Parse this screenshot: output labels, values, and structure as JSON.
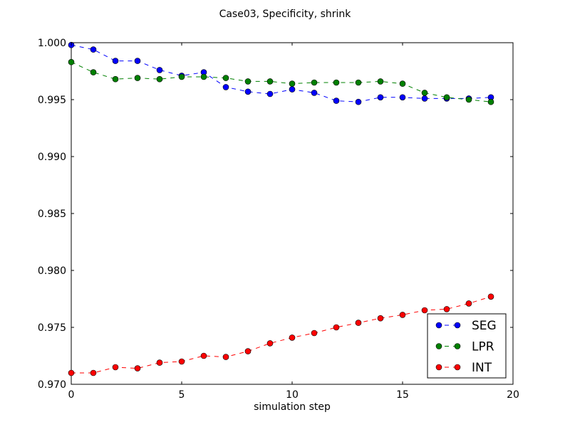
{
  "chart_data": {
    "type": "line",
    "title": "Case03, Specificity, shrink",
    "xlabel": "simulation step",
    "ylabel": "",
    "xlim": [
      0,
      20
    ],
    "ylim": [
      0.97,
      1.0
    ],
    "xticks": [
      "0",
      "5",
      "10",
      "15",
      "20"
    ],
    "yticks": [
      "0.970",
      "0.975",
      "0.980",
      "0.985",
      "0.990",
      "0.995",
      "1.000"
    ],
    "legend_position": "lower-right",
    "grid": false,
    "x": [
      0,
      1,
      2,
      3,
      4,
      5,
      6,
      7,
      8,
      9,
      10,
      11,
      12,
      13,
      14,
      15,
      16,
      17,
      18,
      19
    ],
    "series": [
      {
        "name": "SEG",
        "color": "#0000ff",
        "values": [
          0.9998,
          0.9994,
          0.9984,
          0.9984,
          0.9976,
          0.9971,
          0.9974,
          0.9961,
          0.9957,
          0.9955,
          0.9959,
          0.9956,
          0.9949,
          0.9948,
          0.9952,
          0.9952,
          0.9951,
          0.9951,
          0.9951,
          0.9952
        ]
      },
      {
        "name": "LPR",
        "color": "#008000",
        "values": [
          0.9983,
          0.9974,
          0.9968,
          0.9969,
          0.9968,
          0.997,
          0.997,
          0.9969,
          0.9966,
          0.9966,
          0.9964,
          0.9965,
          0.9965,
          0.9965,
          0.9966,
          0.9964,
          0.9956,
          0.9952,
          0.995,
          0.9948
        ]
      },
      {
        "name": "INT",
        "color": "#ff0000",
        "values": [
          0.971,
          0.971,
          0.9715,
          0.9714,
          0.9719,
          0.972,
          0.9725,
          0.9724,
          0.9729,
          0.9736,
          0.9741,
          0.9745,
          0.975,
          0.9754,
          0.9758,
          0.9761,
          0.9765,
          0.9766,
          0.9771,
          0.9777
        ]
      }
    ]
  }
}
